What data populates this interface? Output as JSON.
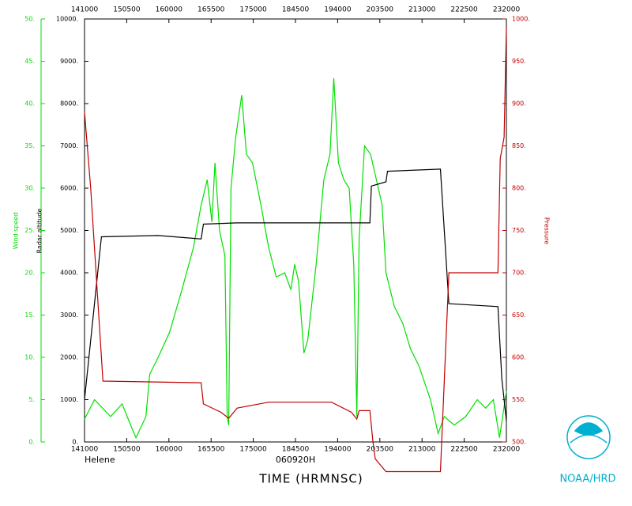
{
  "chart_data": {
    "type": "line",
    "storm": "Helene",
    "flight": "060920H",
    "xlabel": "TIME (HRMNSC)",
    "credit": "NOAA/HRD",
    "xlim": [
      850,
      1400
    ],
    "xticks": [
      {
        "value": 850,
        "label": "141000"
      },
      {
        "value": 905,
        "label": "150500"
      },
      {
        "value": 960,
        "label": "160000"
      },
      {
        "value": 1015,
        "label": "165500"
      },
      {
        "value": 1070,
        "label": "175000"
      },
      {
        "value": 1125,
        "label": "184500"
      },
      {
        "value": 1180,
        "label": "194000"
      },
      {
        "value": 1235,
        "label": "203500"
      },
      {
        "value": 1290,
        "label": "213000"
      },
      {
        "value": 1345,
        "label": "222500"
      },
      {
        "value": 1400,
        "label": "232000"
      }
    ],
    "ylabel": "Wind speed",
    "ylim": [
      0,
      50
    ],
    "yticks": [
      {
        "value": 0,
        "label": "0."
      },
      {
        "value": 5,
        "label": "5."
      },
      {
        "value": 10,
        "label": "10."
      },
      {
        "value": 15,
        "label": "15."
      },
      {
        "value": 20,
        "label": "20."
      },
      {
        "value": 25,
        "label": "25."
      },
      {
        "value": 30,
        "label": "30."
      },
      {
        "value": 35,
        "label": "35."
      },
      {
        "value": 40,
        "label": "40."
      },
      {
        "value": 45,
        "label": "45."
      },
      {
        "value": 50,
        "label": "50."
      }
    ],
    "y2label": "Radar altitude",
    "y2lim": [
      0,
      10000
    ],
    "y2ticks": [
      {
        "value": 0,
        "label": "0."
      },
      {
        "value": 1000,
        "label": "1000."
      },
      {
        "value": 2000,
        "label": "2000."
      },
      {
        "value": 3000,
        "label": "3000."
      },
      {
        "value": 4000,
        "label": "4000."
      },
      {
        "value": 5000,
        "label": "5000."
      },
      {
        "value": 6000,
        "label": "6000."
      },
      {
        "value": 7000,
        "label": "7000."
      },
      {
        "value": 8000,
        "label": "8000."
      },
      {
        "value": 9000,
        "label": "9000."
      },
      {
        "value": 10000,
        "label": "10000."
      }
    ],
    "y3label": "Pressure",
    "y3lim": [
      500,
      1000
    ],
    "y3ticks": [
      {
        "value": 500,
        "label": "500."
      },
      {
        "value": 550,
        "label": "550."
      },
      {
        "value": 600,
        "label": "600."
      },
      {
        "value": 650,
        "label": "650."
      },
      {
        "value": 700,
        "label": "700."
      },
      {
        "value": 750,
        "label": "750."
      },
      {
        "value": 800,
        "label": "800."
      },
      {
        "value": 850,
        "label": "850."
      },
      {
        "value": 900,
        "label": "900."
      },
      {
        "value": 950,
        "label": "950."
      },
      {
        "value": 1000,
        "label": "1000."
      }
    ],
    "series": [
      {
        "name": "Wind speed",
        "color": "#00e000",
        "axis": "y",
        "x": [
          850,
          863,
          884,
          899,
          910,
          917,
          930,
          935,
          946,
          961,
          977,
          992,
          1002,
          1010,
          1016,
          1020,
          1026,
          1033,
          1036,
          1038,
          1041,
          1047,
          1055,
          1061,
          1069,
          1080,
          1090,
          1100,
          1111,
          1119,
          1124,
          1129,
          1136,
          1141,
          1152,
          1162,
          1170,
          1175,
          1181,
          1188,
          1195,
          1201,
          1205,
          1208,
          1215,
          1223,
          1233,
          1238,
          1243,
          1254,
          1265,
          1275,
          1286,
          1301,
          1311,
          1319,
          1332,
          1347,
          1362,
          1373,
          1383,
          1391,
          1400
        ],
        "values": [
          2.7,
          5,
          3,
          4.5,
          2,
          0.5,
          3,
          8,
          10,
          13,
          18,
          23,
          28,
          31,
          26,
          33,
          25,
          22,
          3,
          2,
          30,
          36,
          41,
          34,
          33,
          28,
          23,
          19.5,
          20,
          18,
          21,
          19,
          10.5,
          12,
          21,
          31,
          34,
          43,
          33,
          31,
          30,
          21,
          3,
          24,
          35,
          34,
          30,
          28,
          20,
          16,
          14,
          11,
          9,
          5,
          1,
          3,
          2,
          3,
          5,
          4,
          5,
          0.5,
          6
        ]
      },
      {
        "name": "Radar altitude",
        "color": "#000000",
        "axis": "y2",
        "x": [
          850,
          872,
          946,
          1002,
          1005,
          1049,
          1152,
          1222,
          1224,
          1243,
          1245,
          1314,
          1325,
          1389,
          1394,
          1400
        ],
        "values": [
          1000,
          4850,
          4880,
          4800,
          5150,
          5180,
          5180,
          5180,
          6050,
          6150,
          6400,
          6450,
          3270,
          3200,
          1500,
          500
        ]
      },
      {
        "name": "Pressure",
        "color": "#c00000",
        "axis": "y3",
        "x": [
          850,
          858,
          874,
          1002,
          1005,
          1028,
          1038,
          1049,
          1090,
          1172,
          1198,
          1205,
          1208,
          1222,
          1226,
          1229,
          1243,
          1314,
          1325,
          1389,
          1392,
          1397,
          1400
        ],
        "values": [
          890,
          800,
          572,
          570,
          545,
          535,
          528,
          540,
          547,
          547,
          535,
          527,
          537,
          537,
          500,
          480,
          465,
          465,
          700,
          700,
          835,
          860,
          990
        ]
      }
    ]
  }
}
